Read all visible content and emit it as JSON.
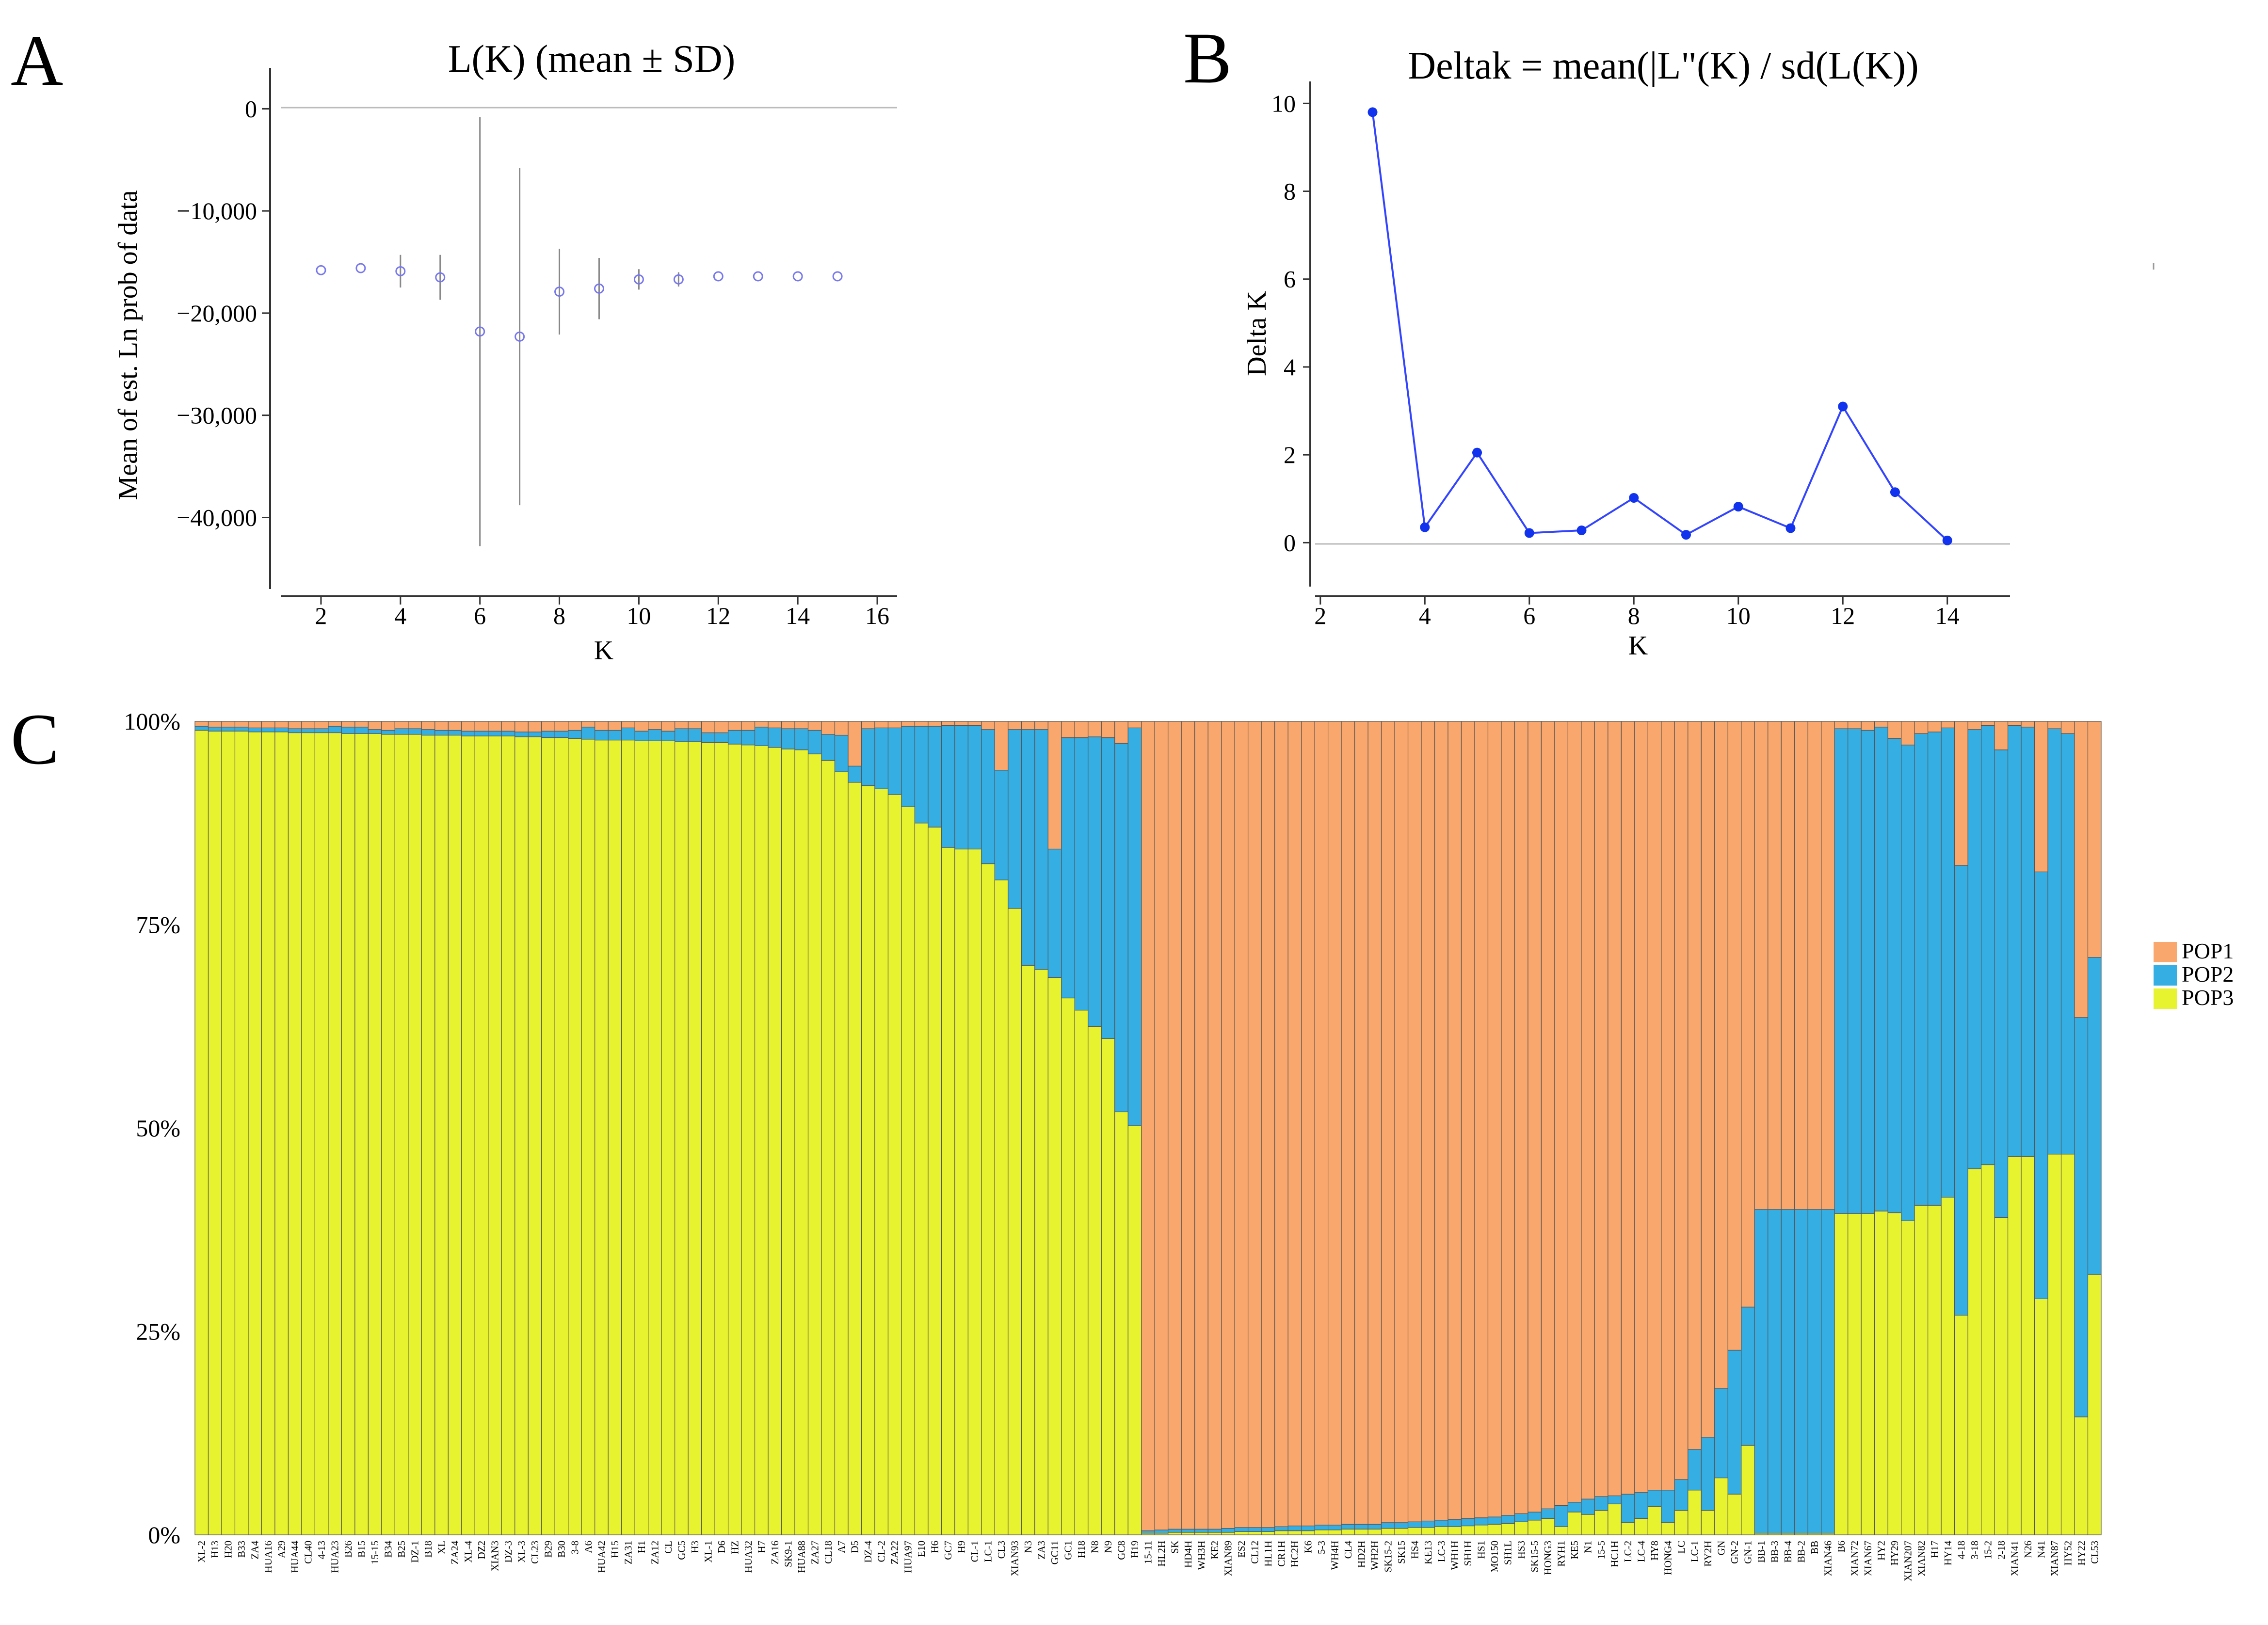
{
  "panels": {
    "A": {
      "letter": "A",
      "chart_data": {
        "type": "scatter",
        "title": "L(K) (mean ± SD)",
        "xlabel": "K",
        "ylabel": "Mean of est. Ln prob of data",
        "xlim": [
          1,
          16.5
        ],
        "ylim": [
          -47000,
          4000
        ],
        "xticks": [
          2,
          4,
          6,
          8,
          10,
          12,
          14,
          16
        ],
        "yticks": [
          0,
          -10000,
          -20000,
          -30000,
          -40000
        ],
        "ytick_labels": [
          "0",
          "−10,000",
          "−20,000",
          "−30,000",
          "−40,000"
        ],
        "points": [
          {
            "k": 2,
            "mean": -15800,
            "sd": 0
          },
          {
            "k": 3,
            "mean": -15600,
            "sd": 0
          },
          {
            "k": 4,
            "mean": -15900,
            "sd": 1600
          },
          {
            "k": 5,
            "mean": -16500,
            "sd": 2200
          },
          {
            "k": 6,
            "mean": -21800,
            "sd": 21000
          },
          {
            "k": 7,
            "mean": -22300,
            "sd": 16500
          },
          {
            "k": 8,
            "mean": -17900,
            "sd": 4200
          },
          {
            "k": 9,
            "mean": -17600,
            "sd": 3000
          },
          {
            "k": 10,
            "mean": -16700,
            "sd": 1000
          },
          {
            "k": 11,
            "mean": -16700,
            "sd": 700
          },
          {
            "k": 12,
            "mean": -16400,
            "sd": 0
          },
          {
            "k": 13,
            "mean": -16400,
            "sd": 0
          },
          {
            "k": 14,
            "mean": -16400,
            "sd": 0
          },
          {
            "k": 15,
            "mean": -16400,
            "sd": 0
          }
        ]
      }
    },
    "B": {
      "letter": "B",
      "chart_data": {
        "type": "line",
        "title": "Deltak = mean(|L\"(K) / sd(L(K))",
        "xlabel": "K",
        "ylabel": "Delta K",
        "xlim": [
          1.9,
          15.2
        ],
        "ylim": [
          -1,
          10.5
        ],
        "xticks": [
          2,
          4,
          6,
          8,
          10,
          12,
          14
        ],
        "yticks": [
          0,
          2,
          4,
          6,
          8,
          10
        ],
        "x": [
          3,
          4,
          5,
          6,
          7,
          8,
          9,
          10,
          11,
          12,
          13,
          14
        ],
        "y": [
          9.8,
          0.35,
          2.05,
          0.22,
          0.28,
          1.02,
          0.18,
          0.82,
          0.33,
          3.1,
          1.15,
          0.05
        ],
        "color": "#3344ff"
      }
    },
    "C": {
      "letter": "C",
      "chart_data": {
        "type": "bar",
        "stacked": true,
        "ylim": [
          0,
          100
        ],
        "yticks": [
          0,
          25,
          50,
          75,
          100
        ],
        "ytick_labels": [
          "0%",
          "25%",
          "50%",
          "75%",
          "100%"
        ],
        "legend_position": "right",
        "series_names": [
          "POP1",
          "POP2",
          "POP3"
        ],
        "colors": {
          "POP1": "#f9a76c",
          "POP2": "#34aee3",
          "POP3": "#e8f32f"
        },
        "bars": [
          {
            "label": "XL-2",
            "pop3": 98.9,
            "pop2": 0.5
          },
          {
            "label": "H13",
            "pop3": 98.8,
            "pop2": 0.5
          },
          {
            "label": "H20",
            "pop3": 98.8,
            "pop2": 0.5
          },
          {
            "label": "B33",
            "pop3": 98.8,
            "pop2": 0.5
          },
          {
            "label": "ZA4",
            "pop3": 98.7,
            "pop2": 0.5
          },
          {
            "label": "HUA16",
            "pop3": 98.7,
            "pop2": 0.5
          },
          {
            "label": "A29",
            "pop3": 98.7,
            "pop2": 0.5
          },
          {
            "label": "HUA44",
            "pop3": 98.6,
            "pop2": 0.5
          },
          {
            "label": "CL40",
            "pop3": 98.6,
            "pop2": 0.5
          },
          {
            "label": "4-13",
            "pop3": 98.6,
            "pop2": 0.5
          },
          {
            "label": "HUA23",
            "pop3": 98.6,
            "pop2": 0.8
          },
          {
            "label": "B26",
            "pop3": 98.5,
            "pop2": 0.8
          },
          {
            "label": "B15",
            "pop3": 98.5,
            "pop2": 0.8
          },
          {
            "label": "15-15",
            "pop3": 98.5,
            "pop2": 0.5
          },
          {
            "label": "B34",
            "pop3": 98.4,
            "pop2": 0.5
          },
          {
            "label": "B25",
            "pop3": 98.4,
            "pop2": 0.7
          },
          {
            "label": "DZ-1",
            "pop3": 98.4,
            "pop2": 0.7
          },
          {
            "label": "B18",
            "pop3": 98.3,
            "pop2": 0.7
          },
          {
            "label": "XL",
            "pop3": 98.3,
            "pop2": 0.6
          },
          {
            "label": "ZA24",
            "pop3": 98.3,
            "pop2": 0.6
          },
          {
            "label": "XL-4",
            "pop3": 98.2,
            "pop2": 0.6
          },
          {
            "label": "DZ2",
            "pop3": 98.2,
            "pop2": 0.6
          },
          {
            "label": "XIAN3",
            "pop3": 98.2,
            "pop2": 0.6
          },
          {
            "label": "DZ-3",
            "pop3": 98.2,
            "pop2": 0.6
          },
          {
            "label": "XL-3",
            "pop3": 98.1,
            "pop2": 0.6
          },
          {
            "label": "CL23",
            "pop3": 98.1,
            "pop2": 0.6
          },
          {
            "label": "B29",
            "pop3": 98.0,
            "pop2": 0.8
          },
          {
            "label": "B30",
            "pop3": 98.0,
            "pop2": 0.8
          },
          {
            "label": "3-8",
            "pop3": 97.9,
            "pop2": 1.0
          },
          {
            "label": "A6",
            "pop3": 97.8,
            "pop2": 1.5
          },
          {
            "label": "HUA42",
            "pop3": 97.7,
            "pop2": 1.2
          },
          {
            "label": "H15",
            "pop3": 97.7,
            "pop2": 1.2
          },
          {
            "label": "ZA31",
            "pop3": 97.7,
            "pop2": 1.5
          },
          {
            "label": "H1",
            "pop3": 97.6,
            "pop2": 1.2
          },
          {
            "label": "ZA12",
            "pop3": 97.6,
            "pop2": 1.4
          },
          {
            "label": "CL",
            "pop3": 97.6,
            "pop2": 1.2
          },
          {
            "label": "GC5",
            "pop3": 97.5,
            "pop2": 1.6
          },
          {
            "label": "H3",
            "pop3": 97.5,
            "pop2": 1.6
          },
          {
            "label": "XL-1",
            "pop3": 97.4,
            "pop2": 1.2
          },
          {
            "label": "D6",
            "pop3": 97.4,
            "pop2": 1.2
          },
          {
            "label": "HZ",
            "pop3": 97.2,
            "pop2": 1.7
          },
          {
            "label": "HUA32",
            "pop3": 97.1,
            "pop2": 1.8
          },
          {
            "label": "H7",
            "pop3": 97.0,
            "pop2": 2.3
          },
          {
            "label": "ZA16",
            "pop3": 96.8,
            "pop2": 2.4
          },
          {
            "label": "SK9-1",
            "pop3": 96.6,
            "pop2": 2.5
          },
          {
            "label": "HUA88",
            "pop3": 96.5,
            "pop2": 2.6
          },
          {
            "label": "ZA27",
            "pop3": 96.0,
            "pop2": 2.9
          },
          {
            "label": "CL18",
            "pop3": 95.2,
            "pop2": 3.2
          },
          {
            "label": "A7",
            "pop3": 93.8,
            "pop2": 4.5
          },
          {
            "label": "D5",
            "pop3": 92.5,
            "pop2": 2.0
          },
          {
            "label": "DZ-4",
            "pop3": 92.1,
            "pop2": 7.0
          },
          {
            "label": "CL-2",
            "pop3": 91.7,
            "pop2": 7.5
          },
          {
            "label": "ZA22",
            "pop3": 91.0,
            "pop2": 8.2
          },
          {
            "label": "HUA97",
            "pop3": 89.5,
            "pop2": 9.9
          },
          {
            "label": "E10",
            "pop3": 87.5,
            "pop2": 11.9
          },
          {
            "label": "H6",
            "pop3": 87.0,
            "pop2": 12.4
          },
          {
            "label": "GC7",
            "pop3": 84.5,
            "pop2": 15.0
          },
          {
            "label": "H9",
            "pop3": 84.3,
            "pop2": 15.2
          },
          {
            "label": "CL-1",
            "pop3": 84.3,
            "pop2": 15.2
          },
          {
            "label": "LC-1",
            "pop3": 82.5,
            "pop2": 16.5
          },
          {
            "label": "CL3",
            "pop3": 80.5,
            "pop2": 13.5
          },
          {
            "label": "XIAN93",
            "pop3": 77.0,
            "pop2": 22.0
          },
          {
            "label": "N3",
            "pop3": 70.0,
            "pop2": 29.0
          },
          {
            "label": "ZA3",
            "pop3": 69.5,
            "pop2": 29.5
          },
          {
            "label": "GC11",
            "pop3": 68.5,
            "pop2": 15.8
          },
          {
            "label": "GC1",
            "pop3": 66.0,
            "pop2": 32.0
          },
          {
            "label": "H18",
            "pop3": 64.5,
            "pop2": 33.5
          },
          {
            "label": "N8",
            "pop3": 62.5,
            "pop2": 35.6
          },
          {
            "label": "N9",
            "pop3": 61.0,
            "pop2": 37.0
          },
          {
            "label": "GC8",
            "pop3": 52.0,
            "pop2": 45.3
          },
          {
            "label": "H19",
            "pop3": 50.3,
            "pop2": 48.9
          },
          {
            "label": "15-11",
            "pop3": 0.2,
            "pop2": 0.3
          },
          {
            "label": "HL2H",
            "pop3": 0.2,
            "pop2": 0.4
          },
          {
            "label": "SK",
            "pop3": 0.3,
            "pop2": 0.4
          },
          {
            "label": "HD4H",
            "pop3": 0.3,
            "pop2": 0.4
          },
          {
            "label": "WH3H",
            "pop3": 0.3,
            "pop2": 0.4
          },
          {
            "label": "KE2",
            "pop3": 0.3,
            "pop2": 0.4
          },
          {
            "label": "XIAN89",
            "pop3": 0.3,
            "pop2": 0.5
          },
          {
            "label": "ES2",
            "pop3": 0.4,
            "pop2": 0.5
          },
          {
            "label": "CL12",
            "pop3": 0.4,
            "pop2": 0.5
          },
          {
            "label": "HL1H",
            "pop3": 0.4,
            "pop2": 0.5
          },
          {
            "label": "CR1H",
            "pop3": 0.5,
            "pop2": 0.5
          },
          {
            "label": "HC2H",
            "pop3": 0.5,
            "pop2": 0.6
          },
          {
            "label": "K6",
            "pop3": 0.5,
            "pop2": 0.6
          },
          {
            "label": "5-3",
            "pop3": 0.6,
            "pop2": 0.6
          },
          {
            "label": "WH4H",
            "pop3": 0.6,
            "pop2": 0.6
          },
          {
            "label": "CL4",
            "pop3": 0.7,
            "pop2": 0.6
          },
          {
            "label": "HD2H",
            "pop3": 0.7,
            "pop2": 0.6
          },
          {
            "label": "WH2H",
            "pop3": 0.7,
            "pop2": 0.6
          },
          {
            "label": "SK15-2",
            "pop3": 0.8,
            "pop2": 0.7
          },
          {
            "label": "SK15",
            "pop3": 0.8,
            "pop2": 0.7
          },
          {
            "label": "HS4",
            "pop3": 0.9,
            "pop2": 0.7
          },
          {
            "label": "KE13",
            "pop3": 0.9,
            "pop2": 0.8
          },
          {
            "label": "LC-3",
            "pop3": 1.0,
            "pop2": 0.8
          },
          {
            "label": "WH1H",
            "pop3": 1.0,
            "pop2": 0.9
          },
          {
            "label": "SH1H",
            "pop3": 1.1,
            "pop2": 0.9
          },
          {
            "label": "HS1",
            "pop3": 1.2,
            "pop2": 0.9
          },
          {
            "label": "MO150",
            "pop3": 1.3,
            "pop2": 0.9
          },
          {
            "label": "SH1L",
            "pop3": 1.4,
            "pop2": 1.0
          },
          {
            "label": "HS3",
            "pop3": 1.6,
            "pop2": 1.0
          },
          {
            "label": "SK15-5",
            "pop3": 1.8,
            "pop2": 1.0
          },
          {
            "label": "HONG3",
            "pop3": 2.0,
            "pop2": 1.2
          },
          {
            "label": "RYH1",
            "pop3": 1.0,
            "pop2": 2.6
          },
          {
            "label": "KE5",
            "pop3": 2.8,
            "pop2": 1.2
          },
          {
            "label": "N1",
            "pop3": 2.5,
            "pop2": 1.9
          },
          {
            "label": "15-5",
            "pop3": 3.0,
            "pop2": 1.7
          },
          {
            "label": "HC1H",
            "pop3": 3.8,
            "pop2": 1.0
          },
          {
            "label": "LC-2",
            "pop3": 1.5,
            "pop2": 3.5
          },
          {
            "label": "LC-4",
            "pop3": 2.0,
            "pop2": 3.2
          },
          {
            "label": "HY8",
            "pop3": 3.5,
            "pop2": 2.0
          },
          {
            "label": "HONG4",
            "pop3": 1.5,
            "pop2": 4.0
          },
          {
            "label": "LC",
            "pop3": 3.0,
            "pop2": 3.8
          },
          {
            "label": "LC-1",
            "pop3": 5.5,
            "pop2": 5.0
          },
          {
            "label": "RY2H",
            "pop3": 3.0,
            "pop2": 9.0
          },
          {
            "label": "GN",
            "pop3": 7.0,
            "pop2": 11.0
          },
          {
            "label": "GN-2",
            "pop3": 5.0,
            "pop2": 17.7
          },
          {
            "label": "GN-1",
            "pop3": 11.0,
            "pop2": 17.0
          },
          {
            "label": "BB-1",
            "pop3": 0.2,
            "pop2": 39.8
          },
          {
            "label": "BB-3",
            "pop3": 0.2,
            "pop2": 39.8
          },
          {
            "label": "BB-4",
            "pop3": 0.2,
            "pop2": 39.8
          },
          {
            "label": "BB-2",
            "pop3": 0.2,
            "pop2": 39.8
          },
          {
            "label": "BB",
            "pop3": 0.2,
            "pop2": 39.8
          },
          {
            "label": "XIAN46",
            "pop3": 0.2,
            "pop2": 39.8
          },
          {
            "label": "B6",
            "pop3": 39.5,
            "pop2": 59.6
          },
          {
            "label": "XIAN72",
            "pop3": 39.5,
            "pop2": 59.6
          },
          {
            "label": "XIAN67",
            "pop3": 39.5,
            "pop2": 59.4
          },
          {
            "label": "HY2",
            "pop3": 39.8,
            "pop2": 59.5
          },
          {
            "label": "HY29",
            "pop3": 39.6,
            "pop2": 58.3
          },
          {
            "label": "XIAN207",
            "pop3": 38.6,
            "pop2": 58.5
          },
          {
            "label": "XIAN82",
            "pop3": 40.5,
            "pop2": 58.0
          },
          {
            "label": "H17",
            "pop3": 40.5,
            "pop2": 58.2
          },
          {
            "label": "HY14",
            "pop3": 41.5,
            "pop2": 57.7
          },
          {
            "label": "4-18",
            "pop3": 27.0,
            "pop2": 55.3
          },
          {
            "label": "3-18",
            "pop3": 45.0,
            "pop2": 54.0
          },
          {
            "label": "15-2",
            "pop3": 45.5,
            "pop2": 54.0
          },
          {
            "label": "2-18",
            "pop3": 39.0,
            "pop2": 57.5
          },
          {
            "label": "XIAN41",
            "pop3": 46.5,
            "pop2": 53.0
          },
          {
            "label": "N26",
            "pop3": 46.5,
            "pop2": 52.8
          },
          {
            "label": "N41",
            "pop3": 29.0,
            "pop2": 52.5
          },
          {
            "label": "XIAN87",
            "pop3": 46.8,
            "pop2": 52.3
          },
          {
            "label": "HY52",
            "pop3": 46.8,
            "pop2": 51.7
          },
          {
            "label": "HY22",
            "pop3": 14.5,
            "pop2": 49.1
          },
          {
            "label": "CL53",
            "pop3": 32.0,
            "pop2": 39.0
          }
        ]
      }
    }
  }
}
